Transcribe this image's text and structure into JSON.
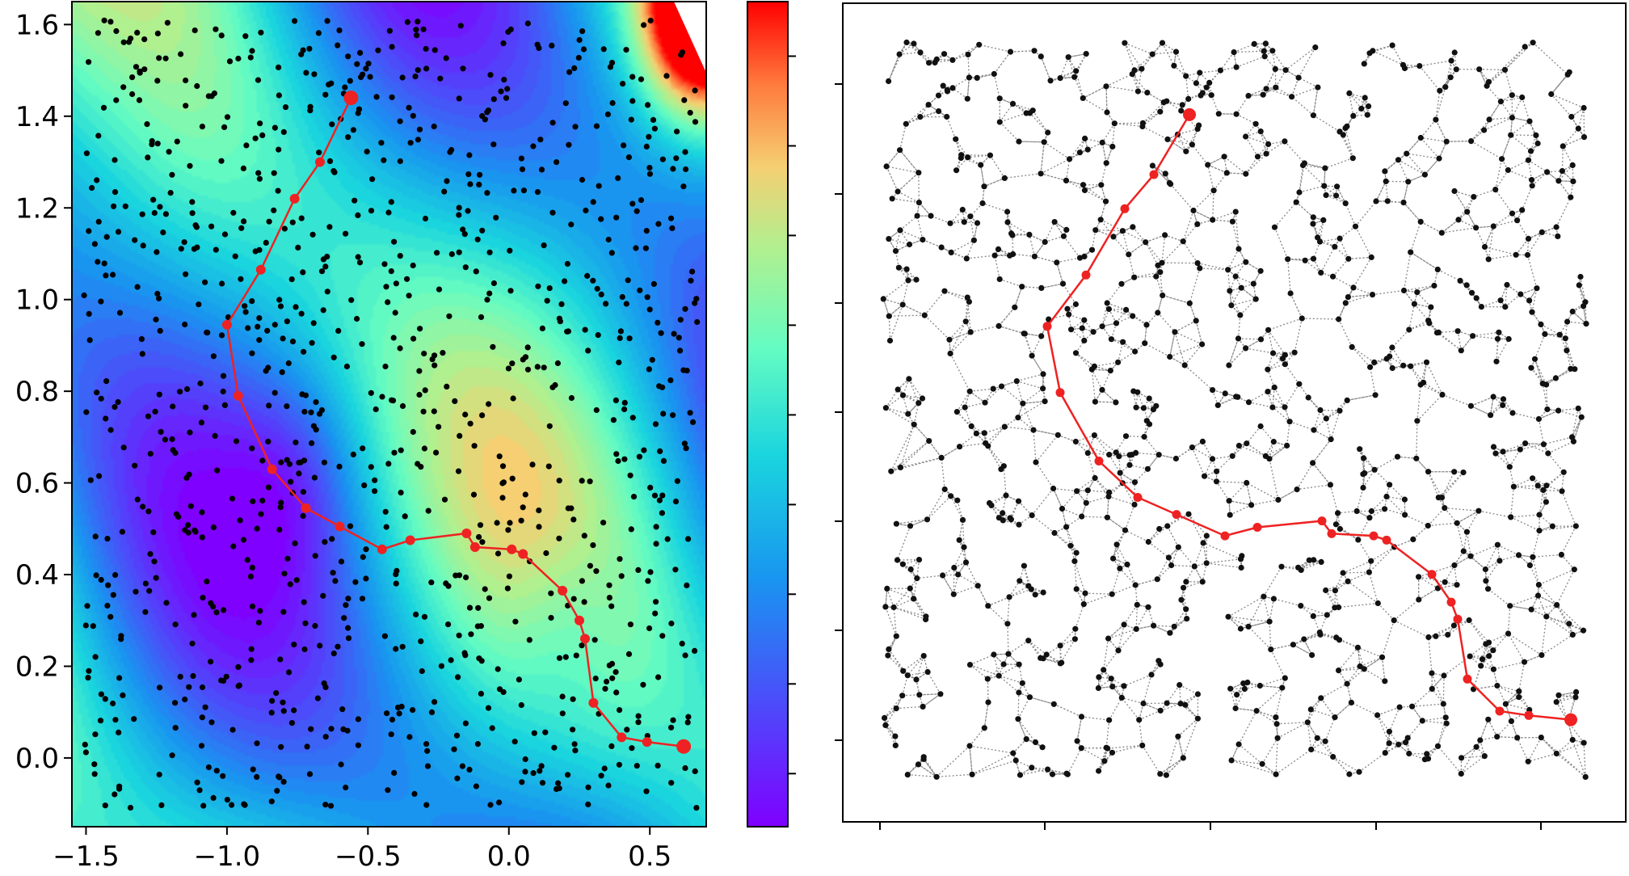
{
  "chart_data": [
    {
      "type": "scatter",
      "title": "",
      "xlabel": "",
      "ylabel": "",
      "xlim": [
        -1.55,
        0.7
      ],
      "ylim": [
        -0.15,
        1.65
      ],
      "x_ticks": [
        -1.5,
        -1.0,
        -0.5,
        0.0,
        0.5
      ],
      "x_tick_labels": [
        "−1.5",
        "−1.0",
        "−0.5",
        "0.0",
        "0.5"
      ],
      "y_ticks": [
        0.0,
        0.2,
        0.4,
        0.6,
        0.8,
        1.0,
        1.2,
        1.4,
        1.6
      ],
      "y_tick_labels": [
        "0.0",
        "0.2",
        "0.4",
        "0.6",
        "0.8",
        "1.0",
        "1.2",
        "1.4",
        "1.6"
      ],
      "background": "filled contour (rainbow colormap) of a scalar field",
      "colorbar": {
        "colormap": "rainbow",
        "tick_count": 9,
        "tick_labels": []
      },
      "sample_points": {
        "color": "#000000",
        "approx_count": 1000
      },
      "path": {
        "color": "#ee2222",
        "points": [
          [
            -0.56,
            1.44
          ],
          [
            -0.67,
            1.3
          ],
          [
            -0.76,
            1.22
          ],
          [
            -0.88,
            1.065
          ],
          [
            -1.0,
            0.945
          ],
          [
            -0.96,
            0.79
          ],
          [
            -0.84,
            0.63
          ],
          [
            -0.72,
            0.545
          ],
          [
            -0.6,
            0.505
          ],
          [
            -0.45,
            0.455
          ],
          [
            -0.35,
            0.475
          ],
          [
            -0.15,
            0.49
          ],
          [
            -0.12,
            0.46
          ],
          [
            0.01,
            0.455
          ],
          [
            0.05,
            0.445
          ],
          [
            0.19,
            0.365
          ],
          [
            0.25,
            0.3
          ],
          [
            0.27,
            0.26
          ],
          [
            0.3,
            0.12
          ],
          [
            0.4,
            0.045
          ],
          [
            0.49,
            0.035
          ],
          [
            0.62,
            0.025
          ]
        ]
      }
    },
    {
      "type": "graph",
      "title": "",
      "xlabel": "",
      "ylabel": "",
      "xlim": [
        -1.55,
        0.7
      ],
      "ylim": [
        -0.15,
        1.65
      ],
      "x_tick_count": 5,
      "y_tick_count": 7,
      "tick_labels": [],
      "nodes": {
        "color": "#111111",
        "approx_count": 1000
      },
      "edges": {
        "color": "#888888",
        "style": "dotted",
        "type": "nearest-neighbour graph"
      },
      "path": {
        "color": "#ee2222",
        "points": [
          [
            -0.56,
            1.44
          ],
          [
            -0.67,
            1.3
          ],
          [
            -0.76,
            1.22
          ],
          [
            -0.88,
            1.065
          ],
          [
            -1.0,
            0.945
          ],
          [
            -0.96,
            0.79
          ],
          [
            -0.84,
            0.63
          ],
          [
            -0.72,
            0.545
          ],
          [
            -0.6,
            0.505
          ],
          [
            -0.45,
            0.455
          ],
          [
            -0.35,
            0.475
          ],
          [
            -0.15,
            0.49
          ],
          [
            -0.12,
            0.46
          ],
          [
            0.01,
            0.455
          ],
          [
            0.05,
            0.445
          ],
          [
            0.19,
            0.365
          ],
          [
            0.25,
            0.3
          ],
          [
            0.27,
            0.26
          ],
          [
            0.3,
            0.12
          ],
          [
            0.4,
            0.045
          ],
          [
            0.49,
            0.035
          ],
          [
            0.62,
            0.025
          ]
        ]
      }
    }
  ]
}
